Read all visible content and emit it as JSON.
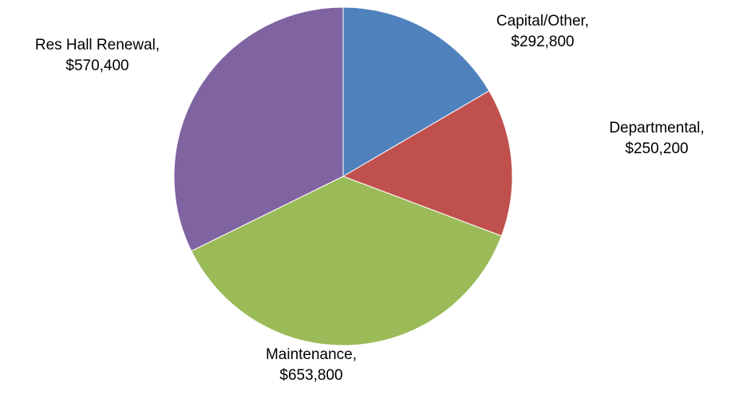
{
  "chart_data": {
    "type": "pie",
    "title": "",
    "start_angle_deg": 0,
    "direction": "clockwise",
    "slices": [
      {
        "label": "Capital/Other,",
        "value_text": "$292,800",
        "value": 292800,
        "color": "#4F81BD"
      },
      {
        "label": "Departmental,",
        "value_text": "$250,200",
        "value": 250200,
        "color": "#C0504D"
      },
      {
        "label": "Maintenance,",
        "value_text": "$653,800",
        "value": 653800,
        "color": "#9BBB59"
      },
      {
        "label": "Res Hall Renewal,",
        "value_text": "$570,400",
        "value": 570400,
        "color": "#8064A2"
      }
    ]
  }
}
